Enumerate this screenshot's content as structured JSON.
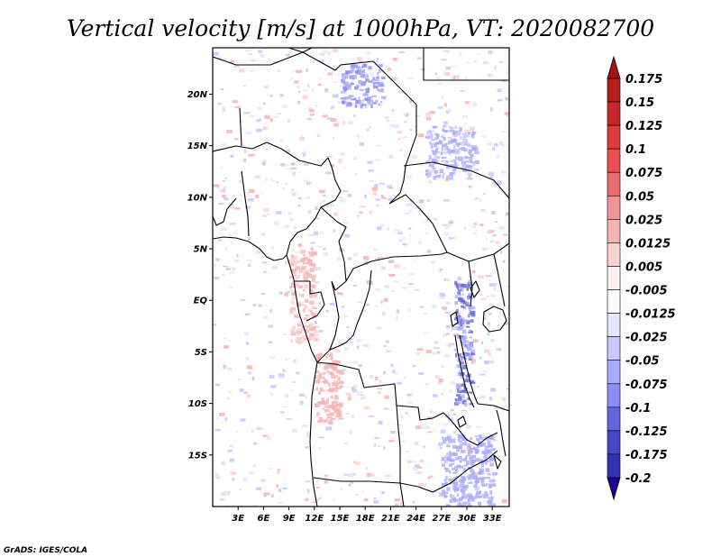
{
  "chart_data": {
    "type": "heatmap",
    "title": "Vertical velocity [m/s] at 1000hPa, VT: 2020082700",
    "xlabel": "",
    "ylabel": "",
    "xlim": [
      0,
      35
    ],
    "ylim": [
      -20,
      24.5
    ],
    "x_ticks": [
      {
        "value": 3,
        "label": "3E"
      },
      {
        "value": 6,
        "label": "6E"
      },
      {
        "value": 9,
        "label": "9E"
      },
      {
        "value": 12,
        "label": "12E"
      },
      {
        "value": 15,
        "label": "15E"
      },
      {
        "value": 18,
        "label": "18E"
      },
      {
        "value": 21,
        "label": "21E"
      },
      {
        "value": 24,
        "label": "24E"
      },
      {
        "value": 27,
        "label": "27E"
      },
      {
        "value": 30,
        "label": "30E"
      },
      {
        "value": 33,
        "label": "33E"
      }
    ],
    "y_ticks": [
      {
        "value": 20,
        "label": "20N"
      },
      {
        "value": 15,
        "label": "15N"
      },
      {
        "value": 10,
        "label": "10N"
      },
      {
        "value": 5,
        "label": "5N"
      },
      {
        "value": 0,
        "label": "EQ"
      },
      {
        "value": -5,
        "label": "5S"
      },
      {
        "value": -10,
        "label": "10S"
      },
      {
        "value": -15,
        "label": "15S"
      }
    ],
    "colorbar": {
      "levels": [
        {
          "label": "0.175",
          "color": "#b41e1e"
        },
        {
          "label": "0.15",
          "color": "#c8282a"
        },
        {
          "label": "0.125",
          "color": "#dc3c3c"
        },
        {
          "label": "0.1",
          "color": "#e65050"
        },
        {
          "label": "0.075",
          "color": "#eb6e6e"
        },
        {
          "label": "0.05",
          "color": "#f09696"
        },
        {
          "label": "0.025",
          "color": "#f5b4b4"
        },
        {
          "label": "0.0125",
          "color": "#fad2d2"
        },
        {
          "label": "0.005",
          "color": "#fff0f0"
        },
        {
          "label": "-0.005",
          "color": "#ffffff"
        },
        {
          "label": "-0.0125",
          "color": "#e6e6ff"
        },
        {
          "label": "-0.025",
          "color": "#c8c8ff"
        },
        {
          "label": "-0.05",
          "color": "#aaaaff"
        },
        {
          "label": "-0.075",
          "color": "#8c8cf5"
        },
        {
          "label": "-0.1",
          "color": "#6464dc"
        },
        {
          "label": "-0.125",
          "color": "#4646c8"
        },
        {
          "label": "-0.175",
          "color": "#3232b4"
        },
        {
          "label": "-0.2",
          "color": "#1e1ea0"
        }
      ],
      "top_arrow_color": "#a01414",
      "bottom_arrow_color": "#1e0096"
    },
    "features": [
      {
        "name": "blue-band-east-africa",
        "sign": "negative",
        "lon": [
          28.5,
          30.5
        ],
        "lat": [
          -10,
          2
        ],
        "level": "-0.1"
      },
      {
        "name": "blue-patch-north-sahara",
        "sign": "negative",
        "lon": [
          15,
          20
        ],
        "lat": [
          19,
          23
        ],
        "level": "-0.075"
      },
      {
        "name": "blue-patch-sudan",
        "sign": "negative",
        "lon": [
          25,
          31
        ],
        "lat": [
          12,
          17
        ],
        "level": "-0.025"
      },
      {
        "name": "blue-patch-southeast",
        "sign": "negative",
        "lon": [
          27,
          33
        ],
        "lat": [
          -20,
          -13
        ],
        "level": "-0.05"
      },
      {
        "name": "red-coast-angola",
        "sign": "positive",
        "lon": [
          12,
          15
        ],
        "lat": [
          -12,
          -5
        ],
        "level": "0.025"
      },
      {
        "name": "red-coast-gabon",
        "sign": "positive",
        "lon": [
          9,
          12
        ],
        "lat": [
          -4,
          5
        ],
        "level": "0.0125"
      }
    ]
  },
  "credit": "GrADS: IGES/COLA"
}
